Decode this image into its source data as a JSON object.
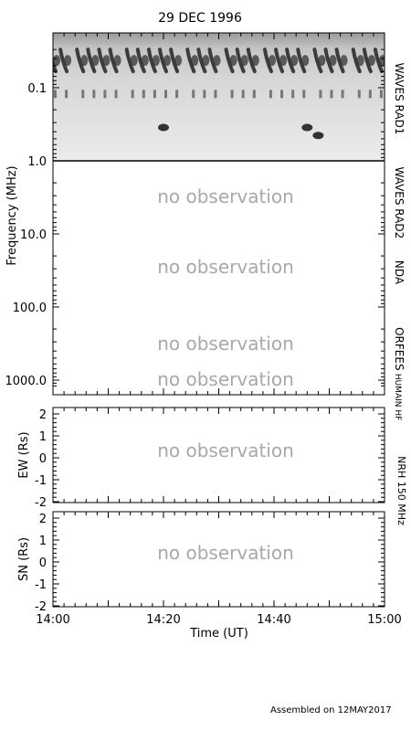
{
  "title": "29 DEC 1996",
  "footer": "Assembled on 12MAY2017",
  "no_observation_text": "no observation",
  "chart_data": [
    {
      "type": "heatmap",
      "panel": "spectrogram",
      "ylabel": "Frequency (MHz)",
      "y_scale": "log",
      "y_reversed": true,
      "ylim": [
        0.02,
        1300
      ],
      "y_ticks": [
        "0.1",
        "1.0",
        "10.0",
        "100.0",
        "1000.0"
      ],
      "y_tick_values": [
        0.1,
        1.0,
        10.0,
        100.0,
        1000.0
      ],
      "colormap": "grayscale (darker = stronger emission)",
      "bands": [
        {
          "label": "WAVES RAD1",
          "range_mhz": [
            0.02,
            1.0
          ],
          "status": "data"
        },
        {
          "label": "WAVES RAD2",
          "range_mhz": [
            1.0,
            14.0
          ],
          "status": "no observation"
        },
        {
          "label": "NDA",
          "range_mhz": [
            14.0,
            80.0
          ],
          "status": "no observation"
        },
        {
          "label": "ORFEES",
          "range_mhz": [
            140.0,
            1000.0
          ],
          "status": "no observation"
        },
        {
          "label": "HUMAIN HF",
          "range_mhz": [
            1000.0,
            1300.0
          ],
          "status": "no observation"
        }
      ],
      "bursts": {
        "freq_mhz": 0.04,
        "times_ut": [
          "14:00",
          "14:02",
          "14:05",
          "14:07",
          "14:09",
          "14:11",
          "14:14",
          "14:16",
          "14:18",
          "14:20",
          "14:22",
          "14:25",
          "14:27",
          "14:29",
          "14:32",
          "14:34",
          "14:36",
          "14:39",
          "14:41",
          "14:43",
          "14:45",
          "14:48",
          "14:50",
          "14:52",
          "14:55",
          "14:57",
          "14:59"
        ],
        "secondary_freq_mhz": 0.12,
        "isolated_events": [
          {
            "time_ut": "14:20",
            "freq_mhz": 0.35
          },
          {
            "time_ut": "14:46",
            "freq_mhz": 0.35
          },
          {
            "time_ut": "14:48",
            "freq_mhz": 0.45
          }
        ]
      }
    },
    {
      "type": "line",
      "panel": "NRH EW",
      "ylabel": "EW (Rs)",
      "ylim": [
        -2,
        2
      ],
      "y_ticks": [
        "2",
        "1",
        "0",
        "-1",
        "-2"
      ],
      "side_label": "NRH 150 MHz",
      "status": "no observation"
    },
    {
      "type": "line",
      "panel": "NRH SN",
      "ylabel": "SN (Rs)",
      "ylim": [
        -2,
        2
      ],
      "y_ticks": [
        "2",
        "1",
        "0",
        "-1",
        "-2"
      ],
      "side_label": "NRH 150 MHz",
      "status": "no observation"
    }
  ],
  "xaxis": {
    "label": "Time (UT)",
    "range": [
      "14:00",
      "15:00"
    ],
    "tick_labels": [
      "14:00",
      "14:20",
      "14:40",
      "15:00"
    ]
  }
}
